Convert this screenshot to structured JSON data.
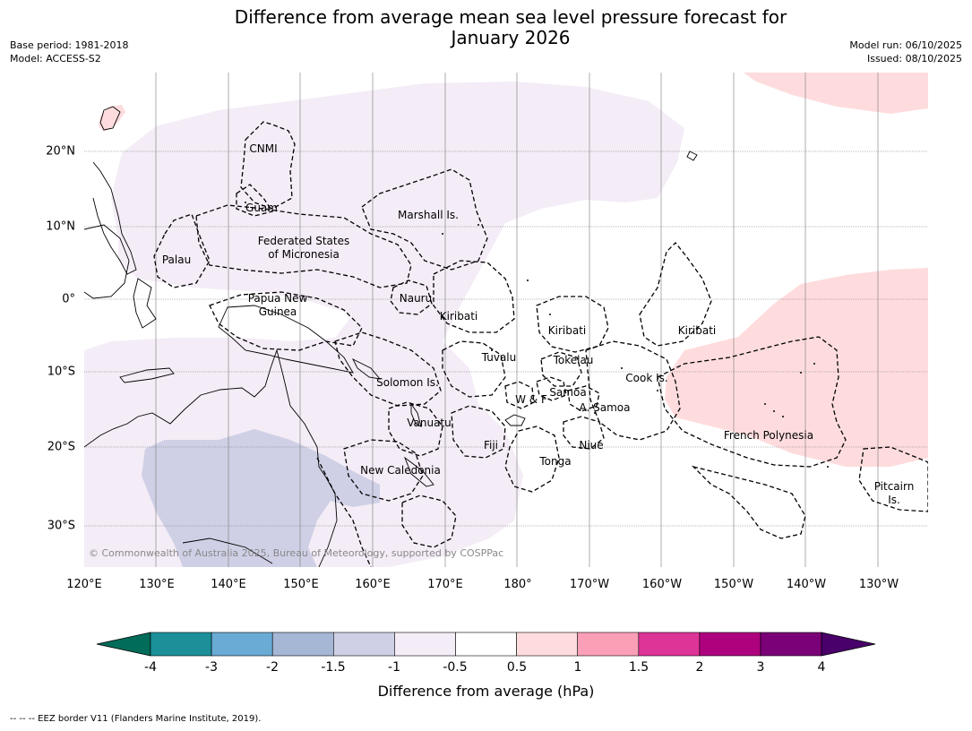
{
  "title_line1": "Difference from average mean sea level pressure forecast for",
  "title_line2": "January 2026",
  "meta_left": {
    "base_period": "Base period: 1981-2018",
    "model": "Model: ACCESS-S2"
  },
  "meta_right": {
    "model_run": "Model run: 06/10/2025",
    "issued": "Issued: 08/10/2025"
  },
  "copyright": "© Commonwealth of Australia 2025, Bureau of Meteorology, supported by COSPPac",
  "lon_labels": [
    "120°E",
    "130°E",
    "140°E",
    "150°E",
    "160°E",
    "170°E",
    "180°",
    "170°W",
    "160°W",
    "150°W",
    "140°W",
    "130°W"
  ],
  "lat_labels": [
    "20°N",
    "10°N",
    "0°",
    "10°S",
    "20°S",
    "30°S"
  ],
  "region_labels": {
    "cnmi": "CNMI",
    "guam": "Guam",
    "marshall": "Marshall Is.",
    "fsm1": "Federated States",
    "fsm2": "of Micronesia",
    "palau": "Palau",
    "png1": "Papua New",
    "png2": "Guinea",
    "nauru": "Nauru",
    "kiribati_w": "Kiribati",
    "kiribati_c": "Kiribati",
    "kiribati_e": "Kiribati",
    "tuvalu": "Tuvalu",
    "tokelau": "Tokelau",
    "solomon": "Solomon Is.",
    "cook": "Cook Is.",
    "samoa": "Samoa",
    "wf": "W & F",
    "asamoa": "A. Samoa",
    "vanuatu": "Vanuatu",
    "fiji": "Fiji",
    "niue": "Niue",
    "tonga": "Tonga",
    "french_polynesia": "French Polynesia",
    "new_caledonia": "New Caledonia",
    "pitcairn1": "Pitcairn",
    "pitcairn2": "Is."
  },
  "colorbar": {
    "title": "Difference from average (hPa)",
    "ticks": [
      "-4",
      "-3",
      "-2",
      "-1.5",
      "-1",
      "-0.5",
      "0.5",
      "1",
      "1.5",
      "2",
      "3",
      "4"
    ],
    "colors": [
      "#1b9099",
      "#69abd4",
      "#a6b7d5",
      "#cfd0e6",
      "#f4ecf6",
      "#ffffff",
      "#fedcdd",
      "#fb9fb7",
      "#dd3497",
      "#ae017e",
      "#7a0177"
    ],
    "under_color": "#016c59",
    "over_color": "#49006a"
  },
  "footer": "--  --  -- EEZ border V11 (Flanders Marine Institute, 2019)."
}
